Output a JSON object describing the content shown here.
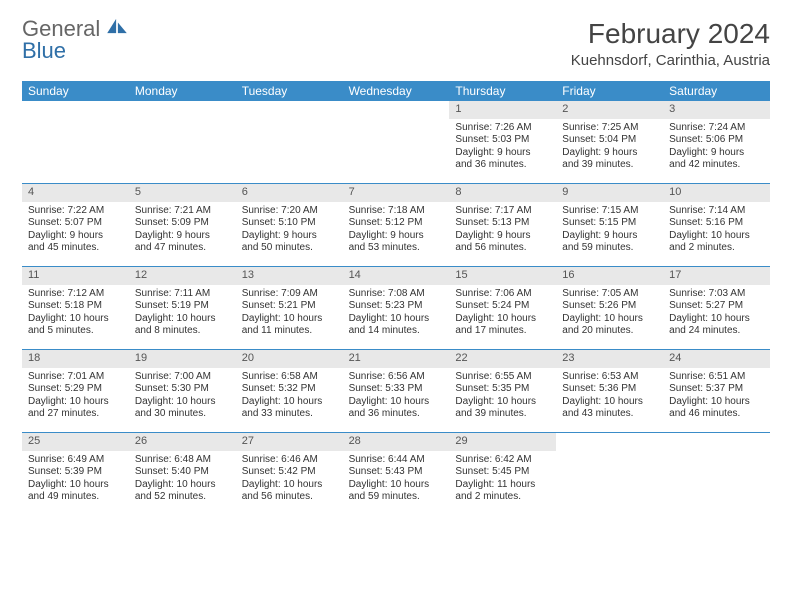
{
  "logo": {
    "text_general": "General",
    "text_blue": "Blue",
    "shape_color": "#2f6fa7"
  },
  "header": {
    "month_title": "February 2024",
    "location": "Kuehnsdorf, Carinthia, Austria"
  },
  "calendar": {
    "type": "table",
    "colors": {
      "header_bg": "#3a8cc8",
      "header_text": "#ffffff",
      "daynum_bg": "#e8e8e8",
      "row_border": "#3a8cc8",
      "body_text": "#333333",
      "background": "#ffffff"
    },
    "typography": {
      "title_fontsize": 28,
      "location_fontsize": 15,
      "dow_fontsize": 12,
      "daynum_fontsize": 11,
      "cell_fontsize": 10
    },
    "columns": [
      "Sunday",
      "Monday",
      "Tuesday",
      "Wednesday",
      "Thursday",
      "Friday",
      "Saturday"
    ],
    "weeks": [
      [
        null,
        null,
        null,
        null,
        {
          "n": "1",
          "sunrise": "Sunrise: 7:26 AM",
          "sunset": "Sunset: 5:03 PM",
          "daylight": "Daylight: 9 hours\nand 36 minutes."
        },
        {
          "n": "2",
          "sunrise": "Sunrise: 7:25 AM",
          "sunset": "Sunset: 5:04 PM",
          "daylight": "Daylight: 9 hours\nand 39 minutes."
        },
        {
          "n": "3",
          "sunrise": "Sunrise: 7:24 AM",
          "sunset": "Sunset: 5:06 PM",
          "daylight": "Daylight: 9 hours\nand 42 minutes."
        }
      ],
      [
        {
          "n": "4",
          "sunrise": "Sunrise: 7:22 AM",
          "sunset": "Sunset: 5:07 PM",
          "daylight": "Daylight: 9 hours\nand 45 minutes."
        },
        {
          "n": "5",
          "sunrise": "Sunrise: 7:21 AM",
          "sunset": "Sunset: 5:09 PM",
          "daylight": "Daylight: 9 hours\nand 47 minutes."
        },
        {
          "n": "6",
          "sunrise": "Sunrise: 7:20 AM",
          "sunset": "Sunset: 5:10 PM",
          "daylight": "Daylight: 9 hours\nand 50 minutes."
        },
        {
          "n": "7",
          "sunrise": "Sunrise: 7:18 AM",
          "sunset": "Sunset: 5:12 PM",
          "daylight": "Daylight: 9 hours\nand 53 minutes."
        },
        {
          "n": "8",
          "sunrise": "Sunrise: 7:17 AM",
          "sunset": "Sunset: 5:13 PM",
          "daylight": "Daylight: 9 hours\nand 56 minutes."
        },
        {
          "n": "9",
          "sunrise": "Sunrise: 7:15 AM",
          "sunset": "Sunset: 5:15 PM",
          "daylight": "Daylight: 9 hours\nand 59 minutes."
        },
        {
          "n": "10",
          "sunrise": "Sunrise: 7:14 AM",
          "sunset": "Sunset: 5:16 PM",
          "daylight": "Daylight: 10 hours\nand 2 minutes."
        }
      ],
      [
        {
          "n": "11",
          "sunrise": "Sunrise: 7:12 AM",
          "sunset": "Sunset: 5:18 PM",
          "daylight": "Daylight: 10 hours\nand 5 minutes."
        },
        {
          "n": "12",
          "sunrise": "Sunrise: 7:11 AM",
          "sunset": "Sunset: 5:19 PM",
          "daylight": "Daylight: 10 hours\nand 8 minutes."
        },
        {
          "n": "13",
          "sunrise": "Sunrise: 7:09 AM",
          "sunset": "Sunset: 5:21 PM",
          "daylight": "Daylight: 10 hours\nand 11 minutes."
        },
        {
          "n": "14",
          "sunrise": "Sunrise: 7:08 AM",
          "sunset": "Sunset: 5:23 PM",
          "daylight": "Daylight: 10 hours\nand 14 minutes."
        },
        {
          "n": "15",
          "sunrise": "Sunrise: 7:06 AM",
          "sunset": "Sunset: 5:24 PM",
          "daylight": "Daylight: 10 hours\nand 17 minutes."
        },
        {
          "n": "16",
          "sunrise": "Sunrise: 7:05 AM",
          "sunset": "Sunset: 5:26 PM",
          "daylight": "Daylight: 10 hours\nand 20 minutes."
        },
        {
          "n": "17",
          "sunrise": "Sunrise: 7:03 AM",
          "sunset": "Sunset: 5:27 PM",
          "daylight": "Daylight: 10 hours\nand 24 minutes."
        }
      ],
      [
        {
          "n": "18",
          "sunrise": "Sunrise: 7:01 AM",
          "sunset": "Sunset: 5:29 PM",
          "daylight": "Daylight: 10 hours\nand 27 minutes."
        },
        {
          "n": "19",
          "sunrise": "Sunrise: 7:00 AM",
          "sunset": "Sunset: 5:30 PM",
          "daylight": "Daylight: 10 hours\nand 30 minutes."
        },
        {
          "n": "20",
          "sunrise": "Sunrise: 6:58 AM",
          "sunset": "Sunset: 5:32 PM",
          "daylight": "Daylight: 10 hours\nand 33 minutes."
        },
        {
          "n": "21",
          "sunrise": "Sunrise: 6:56 AM",
          "sunset": "Sunset: 5:33 PM",
          "daylight": "Daylight: 10 hours\nand 36 minutes."
        },
        {
          "n": "22",
          "sunrise": "Sunrise: 6:55 AM",
          "sunset": "Sunset: 5:35 PM",
          "daylight": "Daylight: 10 hours\nand 39 minutes."
        },
        {
          "n": "23",
          "sunrise": "Sunrise: 6:53 AM",
          "sunset": "Sunset: 5:36 PM",
          "daylight": "Daylight: 10 hours\nand 43 minutes."
        },
        {
          "n": "24",
          "sunrise": "Sunrise: 6:51 AM",
          "sunset": "Sunset: 5:37 PM",
          "daylight": "Daylight: 10 hours\nand 46 minutes."
        }
      ],
      [
        {
          "n": "25",
          "sunrise": "Sunrise: 6:49 AM",
          "sunset": "Sunset: 5:39 PM",
          "daylight": "Daylight: 10 hours\nand 49 minutes."
        },
        {
          "n": "26",
          "sunrise": "Sunrise: 6:48 AM",
          "sunset": "Sunset: 5:40 PM",
          "daylight": "Daylight: 10 hours\nand 52 minutes."
        },
        {
          "n": "27",
          "sunrise": "Sunrise: 6:46 AM",
          "sunset": "Sunset: 5:42 PM",
          "daylight": "Daylight: 10 hours\nand 56 minutes."
        },
        {
          "n": "28",
          "sunrise": "Sunrise: 6:44 AM",
          "sunset": "Sunset: 5:43 PM",
          "daylight": "Daylight: 10 hours\nand 59 minutes."
        },
        {
          "n": "29",
          "sunrise": "Sunrise: 6:42 AM",
          "sunset": "Sunset: 5:45 PM",
          "daylight": "Daylight: 11 hours\nand 2 minutes."
        },
        null,
        null
      ]
    ]
  }
}
